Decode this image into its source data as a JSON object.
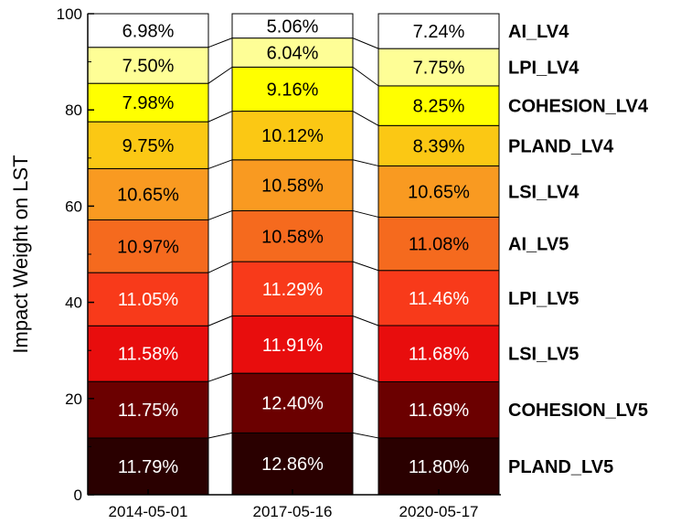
{
  "chart_data": {
    "type": "bar",
    "stacked": true,
    "categories": [
      "2014-05-01",
      "2017-05-16",
      "2020-05-17"
    ],
    "ylabel": "Impact Weight on LST",
    "ylim": [
      0,
      100
    ],
    "yticks": [
      "0",
      "20",
      "40",
      "60",
      "80",
      "100"
    ],
    "grid": false,
    "legend": "right",
    "series": [
      {
        "name": "PLAND_LV5",
        "color": "#2a0000",
        "text_color": "#ffffff",
        "values": [
          11.79,
          12.86,
          11.8
        ],
        "labels": [
          "11.79%",
          "12.86%",
          "11.80%"
        ]
      },
      {
        "name": "COHESION_LV5",
        "color": "#6b0000",
        "text_color": "#ffffff",
        "values": [
          11.75,
          12.4,
          11.69
        ],
        "labels": [
          "11.75%",
          "12.40%",
          "11.69%"
        ]
      },
      {
        "name": "LSI_LV5",
        "color": "#e80d0d",
        "text_color": "#ffffff",
        "values": [
          11.58,
          11.91,
          11.68
        ],
        "labels": [
          "11.58%",
          "11.91%",
          "11.68%"
        ]
      },
      {
        "name": "LPI_LV5",
        "color": "#f83a1a",
        "text_color": "#ffffff",
        "values": [
          11.05,
          11.29,
          11.46
        ],
        "labels": [
          "11.05%",
          "11.29%",
          "11.46%"
        ]
      },
      {
        "name": "AI_LV5",
        "color": "#f56a1e",
        "text_color": "#000000",
        "values": [
          10.97,
          10.58,
          11.08
        ],
        "labels": [
          "10.97%",
          "10.58%",
          "11.08%"
        ]
      },
      {
        "name": "LSI_LV4",
        "color": "#f99a21",
        "text_color": "#000000",
        "values": [
          10.65,
          10.58,
          10.65
        ],
        "labels": [
          "10.65%",
          "10.58%",
          "10.65%"
        ]
      },
      {
        "name": "PLAND_LV4",
        "color": "#fbc814",
        "text_color": "#000000",
        "values": [
          9.75,
          10.12,
          8.39
        ],
        "labels": [
          "9.75%",
          "10.12%",
          "8.39%"
        ]
      },
      {
        "name": "COHESION_LV4",
        "color": "#ffff00",
        "text_color": "#000000",
        "values": [
          7.98,
          9.16,
          8.25
        ],
        "labels": [
          "7.98%",
          "9.16%",
          "8.25%"
        ]
      },
      {
        "name": "LPI_LV4",
        "color": "#fefe96",
        "text_color": "#000000",
        "values": [
          7.5,
          6.04,
          7.75
        ],
        "labels": [
          "7.50%",
          "6.04%",
          "7.75%"
        ]
      },
      {
        "name": "AI_LV4",
        "color": "#ffffff",
        "text_color": "#000000",
        "values": [
          6.98,
          5.06,
          7.24
        ],
        "labels": [
          "6.98%",
          "5.06%",
          "7.24%"
        ]
      }
    ]
  }
}
